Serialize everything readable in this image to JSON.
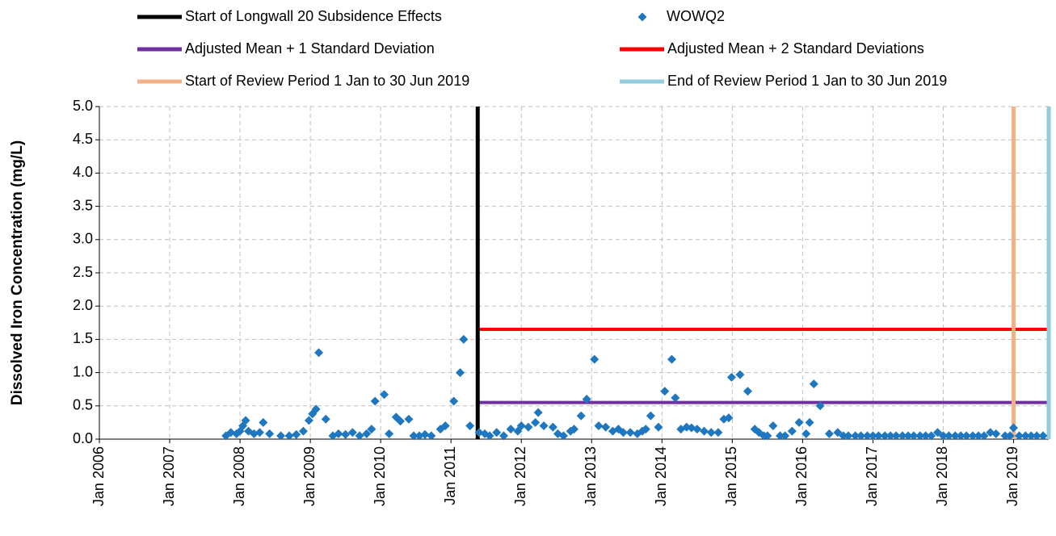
{
  "chart_data": {
    "type": "scatter",
    "y_label": "Dissolved Iron Concentration (mg/L)",
    "xlim": [
      2006,
      2019.5
    ],
    "xticks": [
      {
        "value": 2006,
        "label": "Jan 2006"
      },
      {
        "value": 2007,
        "label": "Jan 2007"
      },
      {
        "value": 2008,
        "label": "Jan 2008"
      },
      {
        "value": 2009,
        "label": "Jan 2009"
      },
      {
        "value": 2010,
        "label": "Jan 2010"
      },
      {
        "value": 2011,
        "label": "Jan 2011"
      },
      {
        "value": 2012,
        "label": "Jan 2012"
      },
      {
        "value": 2013,
        "label": "Jan 2013"
      },
      {
        "value": 2014,
        "label": "Jan 2014"
      },
      {
        "value": 2015,
        "label": "Jan 2015"
      },
      {
        "value": 2016,
        "label": "Jan 2016"
      },
      {
        "value": 2017,
        "label": "Jan 2017"
      },
      {
        "value": 2018,
        "label": "Jan 2018"
      },
      {
        "value": 2019,
        "label": "Jan 2019"
      }
    ],
    "ylim": [
      0,
      5
    ],
    "yticks": [
      {
        "value": 0,
        "label": "0.0"
      },
      {
        "value": 0.5,
        "label": "0.5"
      },
      {
        "value": 1,
        "label": "1.0"
      },
      {
        "value": 1.5,
        "label": "1.5"
      },
      {
        "value": 2,
        "label": "2.0"
      },
      {
        "value": 2.5,
        "label": "2.5"
      },
      {
        "value": 3,
        "label": "3.0"
      },
      {
        "value": 3.5,
        "label": "3.5"
      },
      {
        "value": 4,
        "label": "4.0"
      },
      {
        "value": 4.5,
        "label": "4.5"
      },
      {
        "value": 5,
        "label": "5.0"
      }
    ],
    "grid": true,
    "series": [
      {
        "name": "Start of Longwall 20 Subsidence Effects",
        "kind": "vline",
        "color": "#000000",
        "x": 2011.38
      },
      {
        "name": "WOWQ2",
        "kind": "scatter",
        "color": "#1f77c0",
        "x": [
          2007.8,
          2007.87,
          2007.95,
          2008.0,
          2008.04,
          2008.08,
          2008.12,
          2008.2,
          2008.28,
          2008.33,
          2008.42,
          2008.58,
          2008.7,
          2008.8,
          2008.9,
          2008.98,
          2009.03,
          2009.08,
          2009.12,
          2009.22,
          2009.32,
          2009.4,
          2009.5,
          2009.6,
          2009.7,
          2009.8,
          2009.87,
          2009.92,
          2010.05,
          2010.12,
          2010.22,
          2010.28,
          2010.4,
          2010.47,
          2010.55,
          2010.63,
          2010.72,
          2010.85,
          2010.92,
          2011.04,
          2011.13,
          2011.18,
          2011.27,
          2011.4,
          2011.48,
          2011.55,
          2011.65,
          2011.75,
          2011.85,
          2011.95,
          2012.0,
          2012.1,
          2012.2,
          2012.24,
          2012.32,
          2012.45,
          2012.52,
          2012.6,
          2012.7,
          2012.75,
          2012.85,
          2012.93,
          2013.04,
          2013.1,
          2013.2,
          2013.3,
          2013.38,
          2013.45,
          2013.55,
          2013.65,
          2013.72,
          2013.77,
          2013.84,
          2013.95,
          2014.04,
          2014.14,
          2014.19,
          2014.27,
          2014.35,
          2014.42,
          2014.5,
          2014.6,
          2014.7,
          2014.8,
          2014.88,
          2014.95,
          2014.99,
          2015.11,
          2015.22,
          2015.32,
          2015.38,
          2015.45,
          2015.5,
          2015.58,
          2015.68,
          2015.75,
          2015.85,
          2015.95,
          2016.05,
          2016.1,
          2016.16,
          2016.25,
          2016.38,
          2016.5,
          2016.58,
          2016.65,
          2016.75,
          2016.83,
          2016.92,
          2017.0,
          2017.08,
          2017.17,
          2017.25,
          2017.33,
          2017.42,
          2017.5,
          2017.58,
          2017.67,
          2017.75,
          2017.83,
          2017.92,
          2018.0,
          2018.08,
          2018.17,
          2018.25,
          2018.33,
          2018.42,
          2018.5,
          2018.58,
          2018.67,
          2018.75,
          2018.88,
          2018.95,
          2019.0,
          2019.08,
          2019.17,
          2019.25,
          2019.33,
          2019.42
        ],
        "values": [
          0.05,
          0.1,
          0.08,
          0.12,
          0.2,
          0.28,
          0.12,
          0.08,
          0.1,
          0.25,
          0.08,
          0.05,
          0.05,
          0.07,
          0.12,
          0.28,
          0.38,
          0.45,
          1.3,
          0.3,
          0.05,
          0.08,
          0.07,
          0.1,
          0.05,
          0.08,
          0.15,
          0.57,
          0.67,
          0.08,
          0.33,
          0.27,
          0.3,
          0.05,
          0.05,
          0.07,
          0.05,
          0.15,
          0.2,
          0.57,
          1.0,
          1.5,
          0.2,
          0.1,
          0.08,
          0.05,
          0.1,
          0.05,
          0.15,
          0.12,
          0.2,
          0.18,
          0.25,
          0.4,
          0.2,
          0.18,
          0.08,
          0.05,
          0.12,
          0.15,
          0.35,
          0.6,
          1.2,
          0.2,
          0.18,
          0.12,
          0.15,
          0.1,
          0.1,
          0.08,
          0.12,
          0.15,
          0.35,
          0.18,
          0.72,
          1.2,
          0.62,
          0.15,
          0.18,
          0.17,
          0.15,
          0.12,
          0.1,
          0.1,
          0.3,
          0.32,
          0.93,
          0.97,
          0.72,
          0.15,
          0.1,
          0.05,
          0.05,
          0.2,
          0.05,
          0.05,
          0.12,
          0.25,
          0.08,
          0.25,
          0.83,
          0.5,
          0.08,
          0.1,
          0.05,
          0.05,
          0.05,
          0.05,
          0.05,
          0.05,
          0.05,
          0.05,
          0.05,
          0.05,
          0.05,
          0.05,
          0.05,
          0.05,
          0.05,
          0.05,
          0.1,
          0.05,
          0.05,
          0.05,
          0.05,
          0.05,
          0.05,
          0.05,
          0.05,
          0.1,
          0.08,
          0.05,
          0.05,
          0.17,
          0.05,
          0.05,
          0.05,
          0.05,
          0.05
        ]
      },
      {
        "name": "Adjusted Mean + 1 Standard Deviation",
        "kind": "hline",
        "color": "#7030a0",
        "y": 0.55,
        "x": [
          2011.38,
          2019.5
        ]
      },
      {
        "name": "Adjusted Mean + 2 Standard Deviations",
        "kind": "hline",
        "color": "#ff0000",
        "y": 1.65,
        "x": [
          2011.38,
          2019.5
        ]
      },
      {
        "name": "Start of Review Period 1 Jan to 30 Jun 2019",
        "kind": "vline",
        "color": "#f4b183",
        "x": 2019.0
      },
      {
        "name": "End of Review Period 1 Jan to 30 Jun 2019",
        "kind": "vline",
        "color": "#92cddc",
        "x": 2019.5
      }
    ]
  }
}
